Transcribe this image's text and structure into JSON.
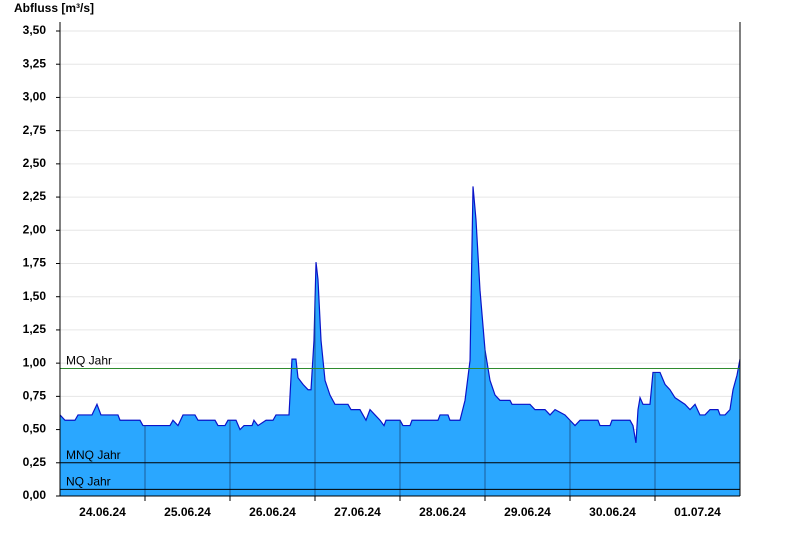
{
  "chart_data": {
    "type": "area",
    "y_label": "Abfluss [m³/s]",
    "xlim": [
      0,
      8
    ],
    "xticks": [
      {
        "value": 0.5,
        "label": "24.06.24"
      },
      {
        "value": 1.5,
        "label": "25.06.24"
      },
      {
        "value": 2.5,
        "label": "26.06.24"
      },
      {
        "value": 3.5,
        "label": "27.06.24"
      },
      {
        "value": 4.5,
        "label": "28.06.24"
      },
      {
        "value": 5.5,
        "label": "29.06.24"
      },
      {
        "value": 6.5,
        "label": "30.06.24"
      },
      {
        "value": 7.5,
        "label": "01.07.24"
      }
    ],
    "ylim": [
      0,
      3.5
    ],
    "yticks": [
      {
        "value": 0,
        "label": "0,00"
      },
      {
        "value": 0.25,
        "label": "0,25"
      },
      {
        "value": 0.5,
        "label": "0,50"
      },
      {
        "value": 0.75,
        "label": "0,75"
      },
      {
        "value": 1,
        "label": "1,00"
      },
      {
        "value": 1.25,
        "label": "1,25"
      },
      {
        "value": 1.5,
        "label": "1,50"
      },
      {
        "value": 1.75,
        "label": "1,75"
      },
      {
        "value": 2,
        "label": "2,00"
      },
      {
        "value": 2.25,
        "label": "2,25"
      },
      {
        "value": 2.5,
        "label": "2,50"
      },
      {
        "value": 2.75,
        "label": "2,75"
      },
      {
        "value": 3,
        "label": "3,00"
      },
      {
        "value": 3.25,
        "label": "3,25"
      },
      {
        "value": 3.5,
        "label": "3,50"
      }
    ],
    "grid": true,
    "color": "#2aa7ff",
    "line_color": "#0a14c8",
    "x": [
      0,
      0.059,
      0.176,
      0.212,
      0.376,
      0.435,
      0.482,
      0.682,
      0.706,
      0.941,
      0.976,
      1.294,
      1.329,
      1.388,
      1.447,
      1.588,
      1.624,
      1.824,
      1.859,
      1.941,
      1.976,
      2.071,
      2.118,
      2.165,
      2.259,
      2.282,
      2.329,
      2.424,
      2.506,
      2.541,
      2.694,
      2.729,
      2.776,
      2.8,
      2.859,
      2.918,
      2.953,
      2.988,
      3.012,
      3.035,
      3.071,
      3.118,
      3.176,
      3.235,
      3.388,
      3.424,
      3.529,
      3.6,
      3.647,
      3.706,
      3.765,
      3.812,
      3.835,
      4,
      4.035,
      4.118,
      4.141,
      4.447,
      4.471,
      4.565,
      4.588,
      4.706,
      4.765,
      4.824,
      4.859,
      4.894,
      4.941,
      5,
      5.059,
      5.118,
      5.176,
      5.294,
      5.318,
      5.529,
      5.588,
      5.706,
      5.765,
      5.824,
      5.941,
      6,
      6.059,
      6.118,
      6.329,
      6.353,
      6.471,
      6.494,
      6.706,
      6.741,
      6.776,
      6.8,
      6.824,
      6.859,
      6.941,
      6.976,
      7.059,
      7.118,
      7.176,
      7.235,
      7.353,
      7.412,
      7.471,
      7.529,
      7.588,
      7.647,
      7.741,
      7.765,
      7.824,
      7.882,
      7.918,
      7.965,
      8
    ],
    "values": [
      0.61,
      0.57,
      0.57,
      0.61,
      0.61,
      0.69,
      0.61,
      0.61,
      0.57,
      0.57,
      0.53,
      0.53,
      0.57,
      0.53,
      0.61,
      0.61,
      0.57,
      0.57,
      0.53,
      0.53,
      0.57,
      0.57,
      0.5,
      0.53,
      0.53,
      0.57,
      0.53,
      0.57,
      0.57,
      0.61,
      0.61,
      1.03,
      1.03,
      0.89,
      0.84,
      0.8,
      0.8,
      1.17,
      1.76,
      1.63,
      1.17,
      0.87,
      0.76,
      0.69,
      0.69,
      0.65,
      0.65,
      0.57,
      0.65,
      0.61,
      0.57,
      0.53,
      0.57,
      0.57,
      0.53,
      0.53,
      0.57,
      0.57,
      0.61,
      0.61,
      0.57,
      0.57,
      0.72,
      1.02,
      2.33,
      2.08,
      1.55,
      1.1,
      0.87,
      0.76,
      0.72,
      0.72,
      0.69,
      0.69,
      0.65,
      0.65,
      0.61,
      0.65,
      0.61,
      0.57,
      0.53,
      0.57,
      0.57,
      0.53,
      0.53,
      0.57,
      0.57,
      0.53,
      0.4,
      0.65,
      0.74,
      0.69,
      0.69,
      0.93,
      0.93,
      0.84,
      0.8,
      0.74,
      0.69,
      0.65,
      0.69,
      0.61,
      0.61,
      0.65,
      0.65,
      0.61,
      0.61,
      0.65,
      0.8,
      0.91,
      1.03
    ],
    "reference_lines": [
      {
        "label": "MQ Jahr",
        "value": 0.96,
        "color": "#2e8b2e"
      },
      {
        "label": "MNQ Jahr",
        "value": 0.25,
        "color": "#000000"
      },
      {
        "label": "NQ Jahr",
        "value": 0.05,
        "color": "#000000"
      }
    ]
  }
}
